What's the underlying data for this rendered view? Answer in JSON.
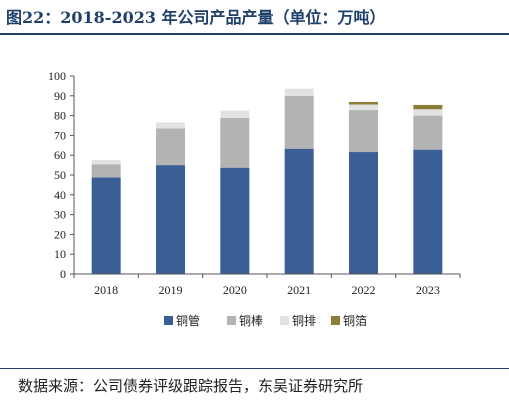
{
  "title": "图22：2018-2023 年公司产品产量（单位：万吨）",
  "source": "数据来源：公司债券评级跟踪报告，东吴证券研究所",
  "chart_data": {
    "type": "bar",
    "stacked": true,
    "title": "图22：2018-2023 年公司产品产量（单位：万吨）",
    "categories": [
      "2018",
      "2019",
      "2020",
      "2021",
      "2022",
      "2023"
    ],
    "series": [
      {
        "name": "铜管",
        "color": "#3a5f95",
        "values": [
          48.8,
          55.0,
          53.7,
          63.3,
          61.6,
          62.8
        ]
      },
      {
        "name": "铜棒",
        "color": "#b3b3b3",
        "values": [
          6.5,
          18.5,
          25.1,
          26.7,
          21.2,
          17.2
        ]
      },
      {
        "name": "铜排",
        "color": "#e2e2e2",
        "values": [
          2.3,
          3.1,
          3.7,
          3.6,
          2.8,
          3.2
        ]
      },
      {
        "name": "铜箔",
        "color": "#8c7d3a",
        "values": [
          0,
          0,
          0,
          0,
          1.3,
          2.2
        ]
      }
    ],
    "ylim": [
      0,
      100
    ],
    "yticks": [
      "0",
      "10",
      "20",
      "30",
      "40",
      "50",
      "60",
      "70",
      "80",
      "90",
      "100"
    ],
    "grid": false,
    "legend_position": "bottom"
  }
}
